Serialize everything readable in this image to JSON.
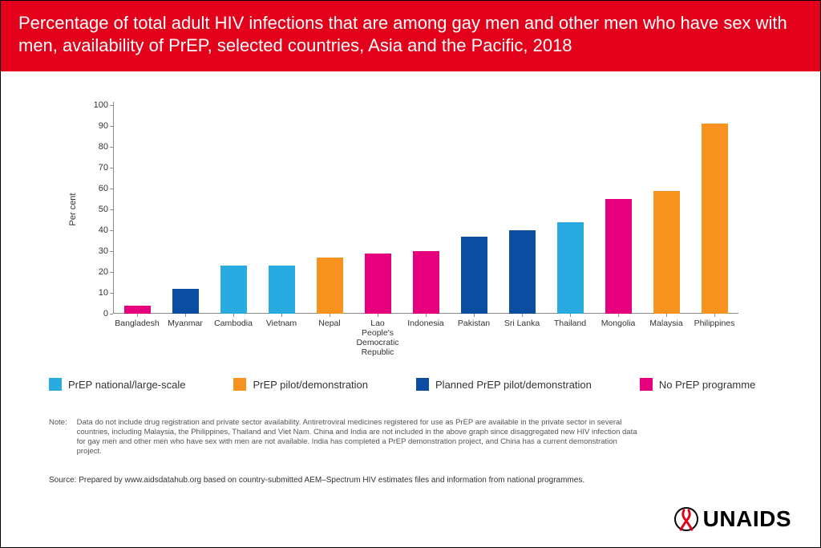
{
  "header": {
    "title": "Percentage of total adult HIV infections that are among gay men and other men who have sex with men, availability of PrEP, selected countries, Asia and the Pacific, 2018"
  },
  "chart": {
    "type": "bar",
    "ylabel": "Per cent",
    "ylim": [
      0,
      100
    ],
    "ytick_step": 10,
    "axis_color": "#8a8a8a",
    "tick_fontsize": 11,
    "xtick_fontsize": 10.5,
    "bar_width_ratio": 0.55,
    "background_color": "#ffffff",
    "categories": [
      {
        "label": "Bangladesh",
        "value": 4,
        "color": "#e6007e"
      },
      {
        "label": "Myanmar",
        "value": 12,
        "color": "#0b4ea2"
      },
      {
        "label": "Cambodia",
        "value": 23,
        "color": "#29abe2"
      },
      {
        "label": "Vietnam",
        "value": 23,
        "color": "#29abe2"
      },
      {
        "label": "Nepal",
        "value": 27,
        "color": "#f7931e"
      },
      {
        "label": "Lao People's Democratic Republic",
        "value": 29,
        "color": "#e6007e"
      },
      {
        "label": "Indonesia",
        "value": 30,
        "color": "#e6007e"
      },
      {
        "label": "Pakistan",
        "value": 37,
        "color": "#0b4ea2"
      },
      {
        "label": "Sri Lanka",
        "value": 40,
        "color": "#0b4ea2"
      },
      {
        "label": "Thailand",
        "value": 44,
        "color": "#29abe2"
      },
      {
        "label": "Mongolia",
        "value": 55,
        "color": "#e6007e"
      },
      {
        "label": "Malaysia",
        "value": 59,
        "color": "#f7931e"
      },
      {
        "label": "Philippines",
        "value": 91,
        "color": "#f7931e"
      }
    ]
  },
  "legend": {
    "items": [
      {
        "label": "PrEP national/large-scale",
        "color": "#29abe2"
      },
      {
        "label": "PrEP pilot/demonstration",
        "color": "#f7931e"
      },
      {
        "label": "Planned PrEP pilot/demonstration",
        "color": "#0b4ea2"
      },
      {
        "label": "No PrEP programme",
        "color": "#e6007e"
      }
    ]
  },
  "note": {
    "label": "Note:",
    "body": "Data do not include drug registration and private sector availability. Antiretroviral medicines registered for use as PrEP are available in the private sector in several countries, including Malaysia, the Philippines, Thailand and Viet Nam. China and India are not included in the above graph since disaggregated new HIV infection data for gay men and other men who have sex with men are not available. India has completed a PrEP demonstration project, and China has a current demonstration project."
  },
  "source": "Source: Prepared by www.aidsdatahub.org based on country-submitted AEM–Spectrum HIV estimates files and information from national programmes.",
  "logo": {
    "text": "UNAIDS",
    "ribbon_color": "#e2001a"
  }
}
